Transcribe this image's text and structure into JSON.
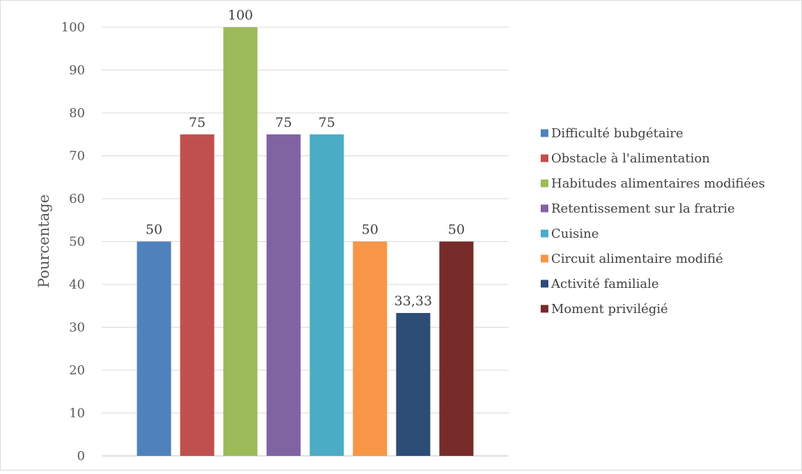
{
  "chart_data": {
    "type": "bar",
    "title": "",
    "xlabel": "",
    "ylabel": "Pourcentage",
    "ylim": [
      0,
      100
    ],
    "yticks": [
      0,
      10,
      20,
      30,
      40,
      50,
      60,
      70,
      80,
      90,
      100
    ],
    "grid": true,
    "legend_position": "right",
    "series": [
      {
        "name": "Difficulté bubgétaire",
        "value": 50,
        "label": "50",
        "color": "#4F81BD"
      },
      {
        "name": "Obstacle à l'alimentation",
        "value": 75,
        "label": "75",
        "color": "#C0504D"
      },
      {
        "name": "Habitudes alimentaires modifiées",
        "value": 100,
        "label": "100",
        "color": "#9BBB59"
      },
      {
        "name": "Retentissement sur la fratrie",
        "value": 75,
        "label": "75",
        "color": "#8064A2"
      },
      {
        "name": "Cuisine",
        "value": 75,
        "label": "75",
        "color": "#4BACC6"
      },
      {
        "name": "Circuit alimentaire modifié",
        "value": 50,
        "label": "50",
        "color": "#F79646"
      },
      {
        "name": "Activité familiale",
        "value": 33.33,
        "label": "33,33",
        "color": "#2C4D75"
      },
      {
        "name": "Moment privilégié",
        "value": 50,
        "label": "50",
        "color": "#772C2A"
      }
    ]
  }
}
